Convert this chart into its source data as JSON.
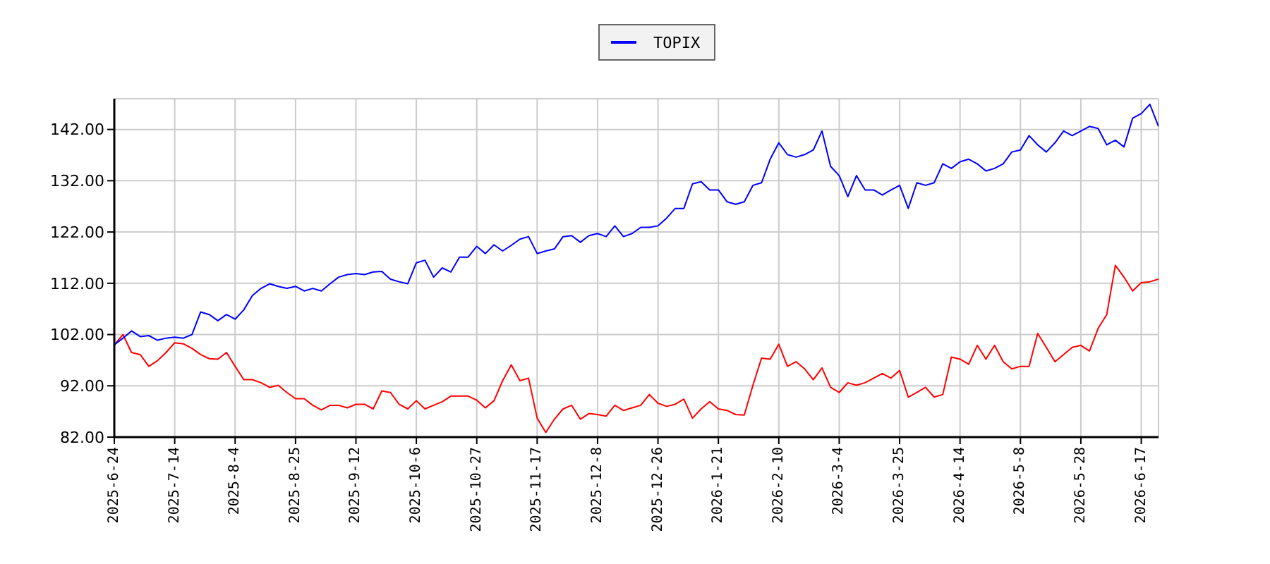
{
  "chart_data": {
    "type": "line",
    "categories": [
      "2025-6-24",
      null,
      null,
      null,
      null,
      null,
      null,
      "2025-7-14",
      null,
      null,
      null,
      null,
      null,
      null,
      "2025-8-4",
      null,
      null,
      null,
      null,
      null,
      null,
      "2025-8-25",
      null,
      null,
      null,
      null,
      null,
      null,
      "2025-9-12",
      null,
      null,
      null,
      null,
      null,
      null,
      "2025-10-6",
      null,
      null,
      null,
      null,
      null,
      null,
      "2025-10-27",
      null,
      null,
      null,
      null,
      null,
      null,
      "2025-11-17",
      null,
      null,
      null,
      null,
      null,
      null,
      "2025-12-8",
      null,
      null,
      null,
      null,
      null,
      null,
      "2025-12-26",
      null,
      null,
      null,
      null,
      null,
      null,
      "2026-1-21",
      null,
      null,
      null,
      null,
      null,
      null,
      "2026-2-10",
      null,
      null,
      null,
      null,
      null,
      null,
      "2026-3-4",
      null,
      null,
      null,
      null,
      null,
      null,
      "2026-3-25",
      null,
      null,
      null,
      null,
      null,
      null,
      "2026-4-14",
      null,
      null,
      null,
      null,
      null,
      null,
      "2026-5-8",
      null,
      null,
      null,
      null,
      null,
      null,
      "2026-5-28",
      null,
      null,
      null,
      null,
      null,
      null,
      "2026-6-17",
      null,
      null
    ],
    "series": [
      {
        "color": "#ff0000",
        "values": [
          100,
          102,
          98.5,
          98.1,
          95.8,
          96.9,
          98.5,
          100.4,
          100.2,
          99.3,
          98.1,
          97.3,
          97.2,
          98.5,
          95.8,
          93.2,
          93.2,
          92.6,
          91.7,
          92.1,
          90.7,
          89.5,
          89.5,
          88.2,
          87.3,
          88.2,
          88.2,
          87.7,
          88.4,
          88.4,
          87.5,
          91.0,
          90.7,
          88.4,
          87.5,
          89.1,
          87.5,
          88.2,
          88.9,
          90.0,
          90.0,
          90.0,
          89.2,
          87.7,
          89.1,
          93.0,
          96.1,
          93.0,
          93.5,
          85.7,
          82.9,
          85.5,
          87.5,
          88.2,
          85.5,
          86.6,
          86.4,
          86.1,
          88.2,
          87.2,
          87.7,
          88.2,
          90.3,
          88.6,
          88.0,
          88.4,
          89.4,
          85.7,
          87.5,
          88.9,
          87.5,
          87.2,
          86.4,
          86.3,
          92.1,
          97.4,
          97.2,
          100.1,
          95.8,
          96.7,
          95.3,
          93.2,
          95.5,
          91.7,
          90.7,
          92.6,
          92.1,
          92.6,
          93.5,
          94.4,
          93.5,
          95.0,
          89.8,
          90.7,
          91.7,
          89.8,
          90.3,
          97.6,
          97.2,
          96.2,
          99.9,
          97.2,
          99.9,
          96.7,
          95.3,
          95.8,
          95.8,
          102.2,
          99.5,
          96.7,
          98.1,
          99.5,
          99.9,
          98.8,
          103.2,
          105.9,
          115.5,
          113.2,
          110.5,
          112.1,
          112.3,
          112.8
        ]
      },
      {
        "name": "TOPIX",
        "color": "#0000ff",
        "values": [
          100,
          101.3,
          102.7,
          101.6,
          101.8,
          100.9,
          101.3,
          101.5,
          101.3,
          102.0,
          106.4,
          105.9,
          104.7,
          105.9,
          105.0,
          106.8,
          109.6,
          111.0,
          111.9,
          111.4,
          111.0,
          111.4,
          110.5,
          111.0,
          110.5,
          111.9,
          113.2,
          113.7,
          113.9,
          113.7,
          114.2,
          114.3,
          112.8,
          112.3,
          111.9,
          116.0,
          116.5,
          113.2,
          115.0,
          114.2,
          117.1,
          117.1,
          119.2,
          117.8,
          119.5,
          118.3,
          119.4,
          120.6,
          121.1,
          117.8,
          118.3,
          118.7,
          121.1,
          121.3,
          120.0,
          121.3,
          121.7,
          121.1,
          123.2,
          121.1,
          121.7,
          122.9,
          122.9,
          123.2,
          124.7,
          126.6,
          126.6,
          131.4,
          131.8,
          130.2,
          130.2,
          127.9,
          127.4,
          127.9,
          131.1,
          131.6,
          136.2,
          139.4,
          137.1,
          136.6,
          137.1,
          138.0,
          141.7,
          134.8,
          133.0,
          128.9,
          133.0,
          130.2,
          130.2,
          129.2,
          130.2,
          131.1,
          126.6,
          131.6,
          131.1,
          131.6,
          135.3,
          134.4,
          135.7,
          136.2,
          135.3,
          133.9,
          134.4,
          135.3,
          137.6,
          138.0,
          140.8,
          139.0,
          137.6,
          139.4,
          141.7,
          140.8,
          141.7,
          142.6,
          142.2,
          139.0,
          139.9,
          138.6,
          144.2,
          145.1,
          146.9,
          142.6
        ]
      }
    ],
    "ylim": [
      82,
      148
    ],
    "yticks": [
      {
        "value": 82,
        "label": "82.00"
      },
      {
        "value": 92,
        "label": "92.00"
      },
      {
        "value": 102,
        "label": "102.00"
      },
      {
        "value": 112,
        "label": "112.00"
      },
      {
        "value": 122,
        "label": "122.00"
      },
      {
        "value": 132,
        "label": "132.00"
      },
      {
        "value": 142,
        "label": "142.00"
      }
    ],
    "grid": true,
    "legend": "top"
  }
}
